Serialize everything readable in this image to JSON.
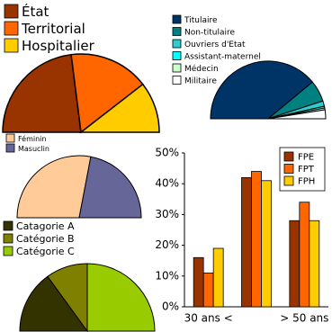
{
  "chart_data": [
    {
      "type": "pie",
      "half": true,
      "categories": [
        "État",
        "Territorial",
        "Hospitalier"
      ],
      "values": [
        46,
        33,
        21
      ],
      "colors": [
        "#993300",
        "#ff6600",
        "#ffcc00"
      ]
    },
    {
      "type": "pie",
      "half": true,
      "categories": [
        "Titulaire",
        "Non-titulaire",
        "Ouvriers d'Etat",
        "Assistant-maternel",
        "Médecin",
        "Militaire"
      ],
      "values": [
        78,
        12,
        3,
        1,
        1,
        5
      ],
      "colors": [
        "#003366",
        "#008080",
        "#33cccc",
        "#00ffff",
        "#ccffcc",
        "#ffffff"
      ]
    },
    {
      "type": "pie",
      "half": true,
      "categories": [
        "Féminin",
        "Masuclin"
      ],
      "values": [
        56,
        44
      ],
      "colors": [
        "#ffcc99",
        "#666699"
      ]
    },
    {
      "type": "pie",
      "half": true,
      "categories": [
        "Catagorie A",
        "Catégorie B",
        "Catégorie C"
      ],
      "values": [
        30,
        20,
        50
      ],
      "colors": [
        "#333300",
        "#808000",
        "#99cc00"
      ]
    },
    {
      "type": "bar",
      "categories": [
        "30 ans <",
        null,
        "> 50 ans"
      ],
      "series": [
        {
          "name": "FPE",
          "color": "#993300",
          "values": [
            16,
            42,
            28
          ]
        },
        {
          "name": "FPT",
          "color": "#ff6600",
          "values": [
            11,
            44,
            34
          ]
        },
        {
          "name": "FPH",
          "color": "#ffcc00",
          "values": [
            19,
            41,
            28
          ]
        }
      ],
      "ylim": [
        0,
        50
      ],
      "yticks": [
        {
          "value": 0,
          "label": "0%"
        },
        {
          "value": 10,
          "label": "10%"
        },
        {
          "value": 20,
          "label": "20%"
        },
        {
          "value": 30,
          "label": "30%"
        },
        {
          "value": 40,
          "label": "40%"
        },
        {
          "value": 50,
          "label": "50%"
        }
      ]
    }
  ]
}
